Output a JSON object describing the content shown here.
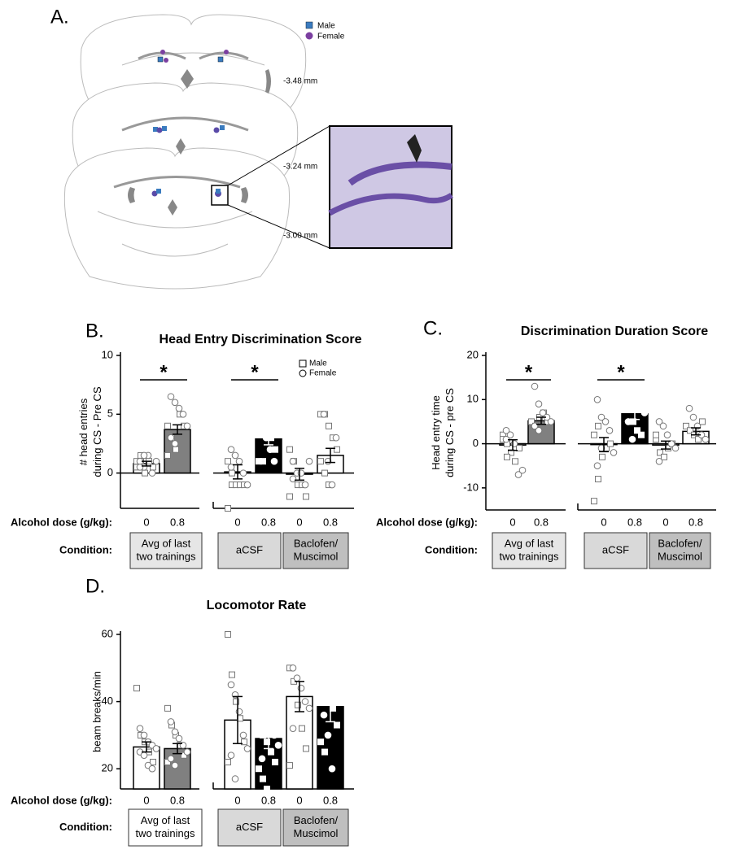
{
  "panel_a": {
    "label": "A.",
    "legend": [
      "Male",
      "Female"
    ],
    "sections": [
      "-3.48 mm",
      "-3.24 mm",
      "-3.00 mm"
    ]
  },
  "chart_data": [
    {
      "type": "bar",
      "label": "B.",
      "title": "Head Entry Discrimination Score",
      "y_label": [
        "# head entries",
        "during CS - Pre CS"
      ],
      "ylim": [
        -3,
        10
      ],
      "yticks": [
        0,
        5,
        10
      ],
      "dose_label": "Alcohol dose  (g/kg):",
      "condition_label": "Condition:",
      "legend": [
        {
          "name": "Male",
          "marker": "square"
        },
        {
          "name": "Female",
          "marker": "circle"
        }
      ],
      "groups": [
        {
          "label": [
            "Avg of last",
            "two trainings"
          ],
          "color": "#e6e6e6",
          "star": "*",
          "categories": [
            "0",
            "0.8"
          ],
          "values": [
            0.8,
            3.7
          ],
          "errors": [
            0.2,
            0.4
          ],
          "colors": [
            "#ffffff",
            "#808080"
          ],
          "male": [
            [
              0.5,
              1,
              0,
              1,
              0.5,
              1,
              1.5
            ],
            [
              4,
              3,
              2,
              5,
              4,
              1.5,
              3
            ]
          ],
          "female": [
            [
              1,
              0.5,
              1.5,
              0,
              1,
              0.5,
              1.5
            ],
            [
              6.5,
              6,
              5.5,
              5,
              4,
              3,
              2.5
            ]
          ]
        },
        {
          "label": [
            "aCSF"
          ],
          "color": "#d9d9d9",
          "star": "*",
          "categories": [
            "0",
            "0.8"
          ],
          "values": [
            0.1,
            2.9
          ],
          "errors": [
            0.6,
            0.5
          ],
          "colors": [
            "#ffffff",
            "#000000"
          ],
          "male": [
            [
              -3,
              -1,
              -1,
              -1,
              -1,
              1,
              0
            ],
            [
              7,
              5,
              4,
              3,
              2,
              1,
              1
            ]
          ],
          "female": [
            [
              2,
              1.5,
              1,
              0,
              -1,
              0.5
            ],
            [
              4,
              3,
              2,
              1,
              4.5
            ]
          ]
        },
        {
          "label": [
            "Baclofen/",
            "Muscimol"
          ],
          "color": "#bfbfbf",
          "categories": [
            "0",
            "0.8"
          ],
          "values": [
            -0.1,
            1.5
          ],
          "errors": [
            0.5,
            0.6
          ],
          "colors": [
            "#ffffff",
            "#ffffff"
          ],
          "male": [
            [
              2,
              1,
              -1,
              -1,
              -2,
              -2
            ],
            [
              5,
              5,
              4,
              3,
              2,
              1,
              0,
              -1
            ]
          ],
          "female": [
            [
              1,
              0,
              0,
              -1,
              1,
              -0.5
            ],
            [
              5,
              1,
              -1,
              3
            ]
          ]
        }
      ]
    },
    {
      "type": "bar",
      "label": "C.",
      "title": "Discrimination Duration Score",
      "y_label": [
        "Head entry time",
        "during CS - pre CS"
      ],
      "ylim": [
        -15,
        20
      ],
      "yticks": [
        -10,
        0,
        10,
        20
      ],
      "dose_label": "Alcohol dose  (g/kg):",
      "condition_label": "Condition:",
      "groups": [
        {
          "label": [
            "Avg of last",
            "two trainings"
          ],
          "color": "#e6e6e6",
          "star": "*",
          "categories": [
            "0",
            "0.8"
          ],
          "values": [
            -0.3,
            5.2
          ],
          "errors": [
            1.2,
            0.8
          ],
          "colors": [
            "#ffffff",
            "#808080"
          ],
          "male": [
            [
              2,
              0,
              -2,
              -4,
              -1,
              1,
              -3
            ],
            [
              5,
              4,
              6,
              7,
              5
            ]
          ],
          "female": [
            [
              1,
              2,
              0,
              -7,
              -6,
              3
            ],
            [
              13,
              9,
              7,
              6,
              5,
              4,
              3
            ]
          ]
        },
        {
          "label": [
            "aCSF"
          ],
          "color": "#d9d9d9",
          "star": "*",
          "categories": [
            "0",
            "0.8"
          ],
          "values": [
            -0.2,
            6.8
          ],
          "errors": [
            1.6,
            1.3
          ],
          "colors": [
            "#ffffff",
            "#000000"
          ],
          "male": [
            [
              -13,
              -8,
              -3,
              -1,
              0,
              2,
              4
            ],
            [
              12,
              8,
              5,
              3,
              2
            ]
          ],
          "female": [
            [
              10,
              6,
              5,
              3,
              -2,
              -5,
              -1
            ],
            [
              15,
              14,
              11,
              9,
              7,
              5,
              1
            ]
          ]
        },
        {
          "label": [
            "Baclofen/",
            "Muscimol"
          ],
          "color": "#bfbfbf",
          "categories": [
            "0",
            "0.8"
          ],
          "values": [
            -0.3,
            2.8
          ],
          "errors": [
            0.9,
            0.8
          ],
          "colors": [
            "#ffffff",
            "#ffffff"
          ],
          "male": [
            [
              1,
              -2,
              -3,
              -1,
              0,
              2
            ],
            [
              4,
              3,
              2,
              1,
              5
            ]
          ],
          "female": [
            [
              5,
              4,
              2,
              0,
              -1,
              -4
            ],
            [
              8,
              6,
              4,
              2,
              1
            ]
          ]
        }
      ]
    },
    {
      "type": "bar",
      "label": "D.",
      "title": "Locomotor Rate",
      "y_label": [
        "beam breaks/min"
      ],
      "ylim": [
        14,
        60
      ],
      "yticks": [
        20,
        40,
        60
      ],
      "dose_label": "Alcohol dose  (g/kg):",
      "condition_label": "Condition:",
      "groups": [
        {
          "label": [
            "Avg of last",
            "two trainings"
          ],
          "color": "#ffffff",
          "categories": [
            "0",
            "0.8"
          ],
          "values": [
            26.5,
            26
          ],
          "errors": [
            1.5,
            1.5
          ],
          "colors": [
            "#ffffff",
            "#808080"
          ],
          "male": [
            [
              44,
              30,
              28,
              25,
              22
            ],
            [
              38,
              33,
              30,
              27,
              24,
              22
            ]
          ],
          "female": [
            [
              32,
              30,
              28,
              27,
              26,
              25,
              24,
              21,
              20
            ],
            [
              34,
              31,
              29,
              27,
              25,
              23,
              21
            ]
          ]
        },
        {
          "label": [
            "aCSF"
          ],
          "color": "#d9d9d9",
          "categories": [
            "0",
            "0.8"
          ],
          "values": [
            34.5,
            29
          ],
          "errors": [
            7,
            3
          ],
          "colors": [
            "#ffffff",
            "#000000"
          ],
          "male": [
            [
              60,
              48,
              40,
              35,
              28,
              22
            ],
            [
              48,
              30,
              28,
              25,
              22,
              20,
              17,
              14
            ]
          ],
          "female": [
            [
              45,
              42,
              37,
              30,
              26,
              24,
              17
            ],
            [
              50,
              40,
              35,
              30,
              27,
              23
            ]
          ]
        },
        {
          "label": [
            "Baclofen/",
            "Muscimol"
          ],
          "color": "#bfbfbf",
          "categories": [
            "0",
            "0.8"
          ],
          "values": [
            41.5,
            38.5
          ],
          "errors": [
            4.5,
            4.5
          ],
          "colors": [
            "#ffffff",
            "#000000"
          ],
          "male": [
            [
              50,
              46,
              39,
              32,
              26,
              21
            ],
            [
              59,
              48,
              42,
              38,
              33,
              28,
              25
            ]
          ],
          "female": [
            [
              50,
              47,
              44,
              40,
              38,
              32
            ],
            [
              52,
              49,
              46,
              42,
              40,
              36,
              30,
              20
            ]
          ]
        }
      ]
    }
  ]
}
